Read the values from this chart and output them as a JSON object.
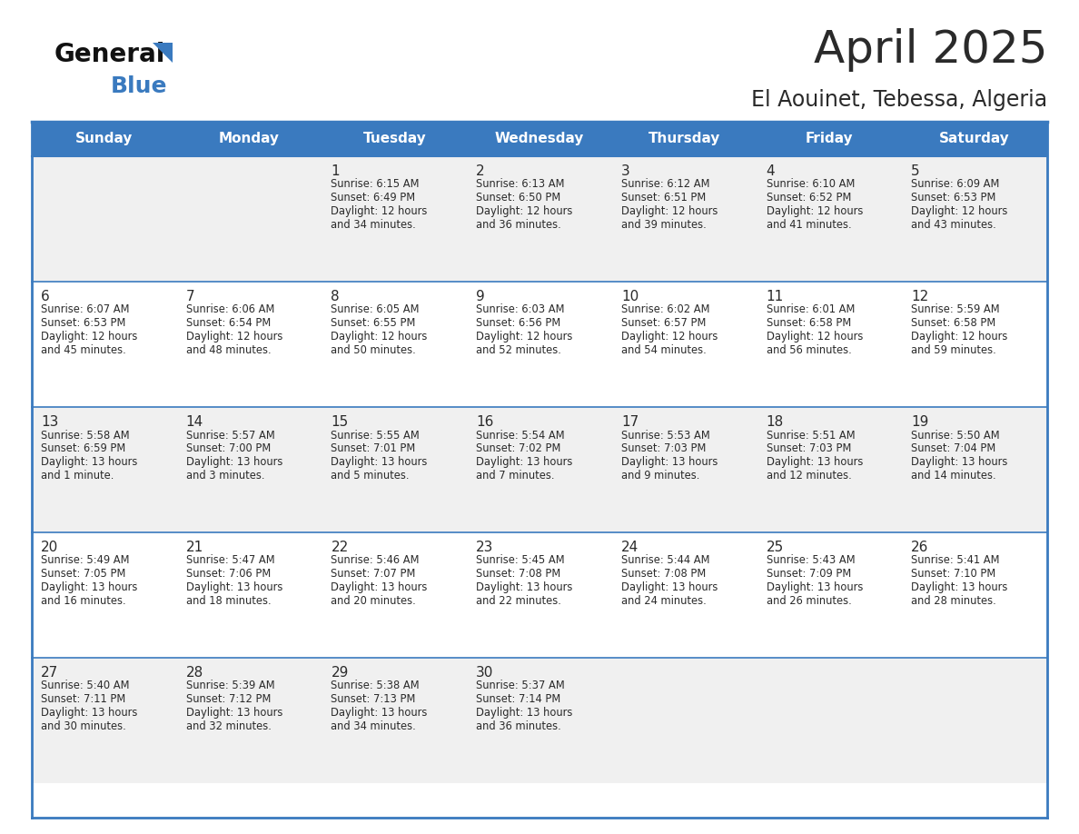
{
  "title": "April 2025",
  "subtitle": "El Aouinet, Tebessa, Algeria",
  "days_of_week": [
    "Sunday",
    "Monday",
    "Tuesday",
    "Wednesday",
    "Thursday",
    "Friday",
    "Saturday"
  ],
  "header_bg": "#3a7abf",
  "header_text_color": "#ffffff",
  "row_bg_odd": "#f0f0f0",
  "row_bg_even": "#ffffff",
  "border_color": "#3a7abf",
  "title_color": "#2a2a2a",
  "subtitle_color": "#2a2a2a",
  "cell_text_color": "#2a2a2a",
  "day_number_color": "#2a2a2a",
  "calendar_data": [
    {
      "day": 1,
      "col": 2,
      "row": 0,
      "sunrise": "6:15 AM",
      "sunset": "6:49 PM",
      "daylight_h": "12 hours",
      "daylight_m": "and 34 minutes."
    },
    {
      "day": 2,
      "col": 3,
      "row": 0,
      "sunrise": "6:13 AM",
      "sunset": "6:50 PM",
      "daylight_h": "12 hours",
      "daylight_m": "and 36 minutes."
    },
    {
      "day": 3,
      "col": 4,
      "row": 0,
      "sunrise": "6:12 AM",
      "sunset": "6:51 PM",
      "daylight_h": "12 hours",
      "daylight_m": "and 39 minutes."
    },
    {
      "day": 4,
      "col": 5,
      "row": 0,
      "sunrise": "6:10 AM",
      "sunset": "6:52 PM",
      "daylight_h": "12 hours",
      "daylight_m": "and 41 minutes."
    },
    {
      "day": 5,
      "col": 6,
      "row": 0,
      "sunrise": "6:09 AM",
      "sunset": "6:53 PM",
      "daylight_h": "12 hours",
      "daylight_m": "and 43 minutes."
    },
    {
      "day": 6,
      "col": 0,
      "row": 1,
      "sunrise": "6:07 AM",
      "sunset": "6:53 PM",
      "daylight_h": "12 hours",
      "daylight_m": "and 45 minutes."
    },
    {
      "day": 7,
      "col": 1,
      "row": 1,
      "sunrise": "6:06 AM",
      "sunset": "6:54 PM",
      "daylight_h": "12 hours",
      "daylight_m": "and 48 minutes."
    },
    {
      "day": 8,
      "col": 2,
      "row": 1,
      "sunrise": "6:05 AM",
      "sunset": "6:55 PM",
      "daylight_h": "12 hours",
      "daylight_m": "and 50 minutes."
    },
    {
      "day": 9,
      "col": 3,
      "row": 1,
      "sunrise": "6:03 AM",
      "sunset": "6:56 PM",
      "daylight_h": "12 hours",
      "daylight_m": "and 52 minutes."
    },
    {
      "day": 10,
      "col": 4,
      "row": 1,
      "sunrise": "6:02 AM",
      "sunset": "6:57 PM",
      "daylight_h": "12 hours",
      "daylight_m": "and 54 minutes."
    },
    {
      "day": 11,
      "col": 5,
      "row": 1,
      "sunrise": "6:01 AM",
      "sunset": "6:58 PM",
      "daylight_h": "12 hours",
      "daylight_m": "and 56 minutes."
    },
    {
      "day": 12,
      "col": 6,
      "row": 1,
      "sunrise": "5:59 AM",
      "sunset": "6:58 PM",
      "daylight_h": "12 hours",
      "daylight_m": "and 59 minutes."
    },
    {
      "day": 13,
      "col": 0,
      "row": 2,
      "sunrise": "5:58 AM",
      "sunset": "6:59 PM",
      "daylight_h": "13 hours",
      "daylight_m": "and 1 minute."
    },
    {
      "day": 14,
      "col": 1,
      "row": 2,
      "sunrise": "5:57 AM",
      "sunset": "7:00 PM",
      "daylight_h": "13 hours",
      "daylight_m": "and 3 minutes."
    },
    {
      "day": 15,
      "col": 2,
      "row": 2,
      "sunrise": "5:55 AM",
      "sunset": "7:01 PM",
      "daylight_h": "13 hours",
      "daylight_m": "and 5 minutes."
    },
    {
      "day": 16,
      "col": 3,
      "row": 2,
      "sunrise": "5:54 AM",
      "sunset": "7:02 PM",
      "daylight_h": "13 hours",
      "daylight_m": "and 7 minutes."
    },
    {
      "day": 17,
      "col": 4,
      "row": 2,
      "sunrise": "5:53 AM",
      "sunset": "7:03 PM",
      "daylight_h": "13 hours",
      "daylight_m": "and 9 minutes."
    },
    {
      "day": 18,
      "col": 5,
      "row": 2,
      "sunrise": "5:51 AM",
      "sunset": "7:03 PM",
      "daylight_h": "13 hours",
      "daylight_m": "and 12 minutes."
    },
    {
      "day": 19,
      "col": 6,
      "row": 2,
      "sunrise": "5:50 AM",
      "sunset": "7:04 PM",
      "daylight_h": "13 hours",
      "daylight_m": "and 14 minutes."
    },
    {
      "day": 20,
      "col": 0,
      "row": 3,
      "sunrise": "5:49 AM",
      "sunset": "7:05 PM",
      "daylight_h": "13 hours",
      "daylight_m": "and 16 minutes."
    },
    {
      "day": 21,
      "col": 1,
      "row": 3,
      "sunrise": "5:47 AM",
      "sunset": "7:06 PM",
      "daylight_h": "13 hours",
      "daylight_m": "and 18 minutes."
    },
    {
      "day": 22,
      "col": 2,
      "row": 3,
      "sunrise": "5:46 AM",
      "sunset": "7:07 PM",
      "daylight_h": "13 hours",
      "daylight_m": "and 20 minutes."
    },
    {
      "day": 23,
      "col": 3,
      "row": 3,
      "sunrise": "5:45 AM",
      "sunset": "7:08 PM",
      "daylight_h": "13 hours",
      "daylight_m": "and 22 minutes."
    },
    {
      "day": 24,
      "col": 4,
      "row": 3,
      "sunrise": "5:44 AM",
      "sunset": "7:08 PM",
      "daylight_h": "13 hours",
      "daylight_m": "and 24 minutes."
    },
    {
      "day": 25,
      "col": 5,
      "row": 3,
      "sunrise": "5:43 AM",
      "sunset": "7:09 PM",
      "daylight_h": "13 hours",
      "daylight_m": "and 26 minutes."
    },
    {
      "day": 26,
      "col": 6,
      "row": 3,
      "sunrise": "5:41 AM",
      "sunset": "7:10 PM",
      "daylight_h": "13 hours",
      "daylight_m": "and 28 minutes."
    },
    {
      "day": 27,
      "col": 0,
      "row": 4,
      "sunrise": "5:40 AM",
      "sunset": "7:11 PM",
      "daylight_h": "13 hours",
      "daylight_m": "and 30 minutes."
    },
    {
      "day": 28,
      "col": 1,
      "row": 4,
      "sunrise": "5:39 AM",
      "sunset": "7:12 PM",
      "daylight_h": "13 hours",
      "daylight_m": "and 32 minutes."
    },
    {
      "day": 29,
      "col": 2,
      "row": 4,
      "sunrise": "5:38 AM",
      "sunset": "7:13 PM",
      "daylight_h": "13 hours",
      "daylight_m": "and 34 minutes."
    },
    {
      "day": 30,
      "col": 3,
      "row": 4,
      "sunrise": "5:37 AM",
      "sunset": "7:14 PM",
      "daylight_h": "13 hours",
      "daylight_m": "and 36 minutes."
    }
  ]
}
